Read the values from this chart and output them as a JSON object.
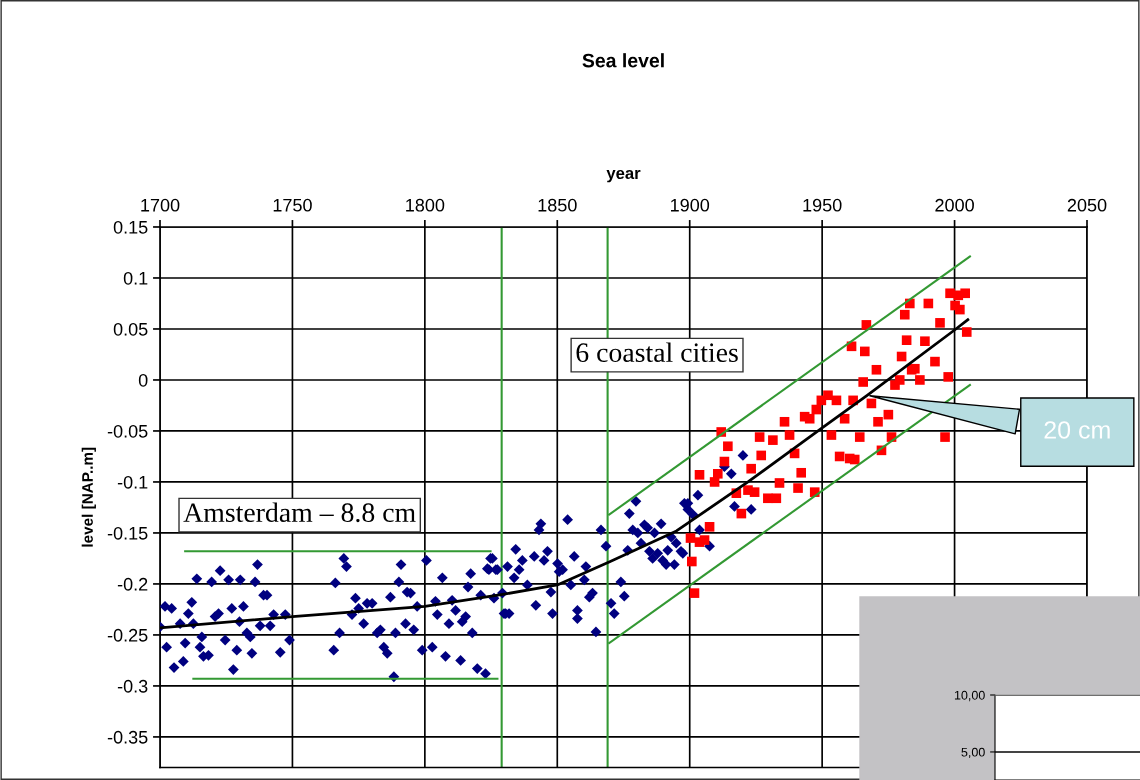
{
  "chart_data": [
    {
      "type": "scatter",
      "title": "Sea level",
      "xlabel": "year",
      "ylabel": "level [NAP..m]",
      "xlim": [
        1700,
        2050
      ],
      "xticks": [
        1700,
        1750,
        1800,
        1850,
        1900,
        1950,
        2000,
        2050
      ],
      "ylim": [
        -0.38,
        0.15
      ],
      "yticks": [
        0.15,
        0.1,
        0.05,
        0,
        -0.05,
        -0.1,
        -0.15,
        -0.2,
        -0.25,
        -0.3,
        -0.35
      ],
      "grid": true,
      "series": [
        {
          "marker": "diamond",
          "color": "#000080",
          "x": [
            1700.0,
            1701.9,
            1704.4,
            1702.5,
            1705.3,
            1708.8,
            1709.5,
            1707.6,
            1710.7,
            1712.0,
            1712.6,
            1713.9,
            1715.8,
            1715.1,
            1716.4,
            1718.3,
            1719.5,
            1720.8,
            1722.7,
            1722.1,
            1724.6,
            1725.9,
            1727.1,
            1727.7,
            1729.0,
            1730.3,
            1730.0,
            1731.5,
            1732.8,
            1734.1,
            1734.7,
            1735.9,
            1736.8,
            1737.8,
            1739.1,
            1740.4,
            1741.6,
            1742.9,
            1745.4,
            1747.3,
            1748.9,
            1766.2,
            1765.6,
            1767.8,
            1769.4,
            1770.4,
            1772.5,
            1773.8,
            1775.0,
            1776.9,
            1778.2,
            1780.1,
            1782.0,
            1783.2,
            1784.5,
            1785.8,
            1787.0,
            1788.3,
            1788.9,
            1790.2,
            1791.0,
            1793.3,
            1794.6,
            1792.7,
            1795.8,
            1797.1,
            1799.0,
            1800.6,
            1802.8,
            1804.0,
            1804.7,
            1806.6,
            1807.8,
            1809.1,
            1810.3,
            1811.6,
            1813.5,
            1814.1,
            1815.4,
            1816.3,
            1817.3,
            1817.9,
            1819.8,
            1821.1,
            1822.9,
            1824.2,
            1824.8,
            1827.4,
            1829.3,
            1830.5,
            1823.6,
            1825.5,
            1826.8,
            1826.1,
            1829.9,
            1831.8,
            1831.2,
            1833.7,
            1834.3,
            1835.6,
            1836.8,
            1838.7,
            1841.3,
            1841.9,
            1843.8,
            1843.1,
            1845.0,
            1846.3,
            1847.6,
            1848.2,
            1850.1,
            1850.7,
            1852.0,
            1853.9,
            1855.1,
            1856.4,
            1857.6,
            1857.6,
            1860.2,
            1860.8,
            1862.1,
            1863.3,
            1864.6,
            1866.5,
            1868.4,
            1870.3,
            1871.5,
            1874.0,
            1875.3,
            1877.2,
            1878.5,
            1876.6,
            1879.7,
            1880.4,
            1881.6,
            1882.9,
            1884.1,
            1884.8,
            1886.0,
            1886.7,
            1887.9,
            1889.2,
            1889.8,
            1891.1,
            1891.7,
            1893.0,
            1894.2,
            1894.9,
            1896.7,
            1898.0,
            1899.3,
            1901.2,
            1899.3,
            1903.1,
            1903.7,
            1907.5,
            1897.4,
            1916.9,
            1920.1,
            1913.1,
            1915.7,
            1923.2
          ],
          "values": [
            -0.242,
            -0.222,
            -0.224,
            -0.262,
            -0.282,
            -0.276,
            -0.258,
            -0.239,
            -0.229,
            -0.218,
            -0.239,
            -0.195,
            -0.252,
            -0.262,
            -0.271,
            -0.27,
            -0.198,
            -0.232,
            -0.187,
            -0.229,
            -0.255,
            -0.196,
            -0.224,
            -0.284,
            -0.265,
            -0.196,
            -0.237,
            -0.222,
            -0.248,
            -0.252,
            -0.268,
            -0.198,
            -0.181,
            -0.241,
            -0.211,
            -0.211,
            -0.241,
            -0.23,
            -0.267,
            -0.23,
            -0.255,
            -0.199,
            -0.265,
            -0.248,
            -0.175,
            -0.183,
            -0.23,
            -0.214,
            -0.224,
            -0.239,
            -0.219,
            -0.219,
            -0.248,
            -0.245,
            -0.262,
            -0.268,
            -0.213,
            -0.291,
            -0.248,
            -0.198,
            -0.181,
            -0.208,
            -0.209,
            -0.239,
            -0.245,
            -0.222,
            -0.265,
            -0.177,
            -0.262,
            -0.217,
            -0.23,
            -0.194,
            -0.271,
            -0.239,
            -0.216,
            -0.226,
            -0.275,
            -0.237,
            -0.232,
            -0.203,
            -0.19,
            -0.248,
            -0.283,
            -0.211,
            -0.288,
            -0.186,
            -0.175,
            -0.186,
            -0.209,
            -0.229,
            -0.185,
            -0.175,
            -0.186,
            -0.214,
            -0.229,
            -0.229,
            -0.183,
            -0.194,
            -0.166,
            -0.186,
            -0.177,
            -0.201,
            -0.173,
            -0.221,
            -0.141,
            -0.147,
            -0.177,
            -0.168,
            -0.208,
            -0.229,
            -0.18,
            -0.188,
            -0.186,
            -0.137,
            -0.201,
            -0.173,
            -0.226,
            -0.234,
            -0.196,
            -0.183,
            -0.213,
            -0.209,
            -0.247,
            -0.147,
            -0.163,
            -0.219,
            -0.229,
            -0.198,
            -0.212,
            -0.131,
            -0.147,
            -0.167,
            -0.119,
            -0.15,
            -0.16,
            -0.142,
            -0.145,
            -0.168,
            -0.175,
            -0.15,
            -0.17,
            -0.141,
            -0.177,
            -0.181,
            -0.167,
            -0.154,
            -0.181,
            -0.16,
            -0.168,
            -0.121,
            -0.127,
            -0.132,
            -0.121,
            -0.113,
            -0.147,
            -0.163,
            -0.17,
            -0.124,
            -0.074,
            -0.085,
            -0.092,
            -0.127
          ]
        },
        {
          "marker": "square",
          "color": "#ff0000",
          "x": [
            1900.3,
            1903.7,
            1900.8,
            1901.8,
            1903.7,
            1905.6,
            1907.5,
            1909.4,
            1910.6,
            1911.9,
            1913.1,
            1914.4,
            1917.6,
            1919.5,
            1922.0,
            1923.2,
            1924.5,
            1926.4,
            1927.0,
            1929.5,
            1932.7,
            1931.4,
            1933.9,
            1935.8,
            1937.7,
            1939.6,
            1940.9,
            1942.1,
            1943.4,
            1945.3,
            1947.2,
            1947.8,
            1949.7,
            1952.2,
            1953.5,
            1955.4,
            1956.6,
            1958.5,
            1960.4,
            1962.3,
            1961.7,
            1964.2,
            1965.5,
            1966.1,
            1961.1,
            1966.7,
            1968.6,
            1970.5,
            1971.1,
            1972.4,
            1975.0,
            1976.2,
            1977.5,
            1979.3,
            1980.0,
            1981.2,
            1981.9,
            1983.1,
            1983.8,
            1985.0,
            1986.9,
            1988.8,
            1990.1,
            1992.6,
            1994.5,
            1996.4,
            1997.6,
            2000.2,
            2002.0,
            2004.6,
            1998.3,
            2001.4,
            2004.0
          ],
          "values": [
            -0.155,
            -0.159,
            -0.178,
            -0.209,
            -0.093,
            -0.157,
            -0.144,
            -0.1,
            -0.092,
            -0.051,
            -0.08,
            -0.065,
            -0.111,
            -0.131,
            -0.108,
            -0.087,
            -0.11,
            -0.056,
            -0.074,
            -0.116,
            -0.116,
            -0.059,
            -0.101,
            -0.041,
            -0.054,
            -0.072,
            -0.106,
            -0.091,
            -0.036,
            -0.038,
            -0.11,
            -0.029,
            -0.02,
            -0.015,
            -0.054,
            -0.02,
            -0.075,
            -0.038,
            -0.077,
            -0.078,
            -0.02,
            -0.056,
            -0.002,
            0.028,
            0.033,
            0.054,
            -0.023,
            0.01,
            -0.041,
            -0.069,
            -0.034,
            -0.056,
            -0.005,
            0.0,
            0.023,
            0.064,
            0.039,
            0.075,
            0.01,
            0.011,
            0.0,
            0.038,
            0.075,
            0.018,
            0.056,
            -0.056,
            0.003,
            0.073,
            0.069,
            0.047,
            0.085,
            0.083,
            0.085
          ]
        },
        {
          "type": "line",
          "color": "#000000",
          "x": [
            1700,
            1750,
            1800,
            1830,
            1850,
            1870,
            1895,
            1922,
            1950,
            1967,
            2000,
            2005
          ],
          "values": [
            -0.243,
            -0.232,
            -0.222,
            -0.21,
            -0.201,
            -0.178,
            -0.148,
            -0.1,
            -0.047,
            -0.015,
            0.049,
            0.059
          ]
        },
        {
          "type": "line",
          "color": "#339933",
          "x": [
            1709.5,
            1824.8
          ],
          "values": [
            -0.168,
            -0.168
          ]
        },
        {
          "type": "line",
          "color": "#339933",
          "x": [
            1712.6,
            1827.4
          ],
          "values": [
            -0.293,
            -0.293
          ]
        },
        {
          "type": "line",
          "color": "#339933",
          "x": [
            1869.6,
            2005.8
          ],
          "values": [
            -0.132,
            0.121
          ]
        },
        {
          "type": "line",
          "color": "#339933",
          "x": [
            1869.6,
            2005.8
          ],
          "values": [
            -0.258,
            -0.005
          ]
        }
      ],
      "ref_lines": [
        {
          "axis": "x",
          "value": 1829,
          "color": "#339933"
        },
        {
          "axis": "x",
          "value": 1869,
          "color": "#339933"
        }
      ],
      "annotations": [
        "Amsterdam – 8.8 cm",
        "6 coastal cities",
        {
          "text": "20 cm",
          "x": 1967,
          "y": -0.015
        }
      ]
    },
    {
      "type": "other",
      "annotations": [
        "10,00",
        "5,00"
      ]
    }
  ]
}
